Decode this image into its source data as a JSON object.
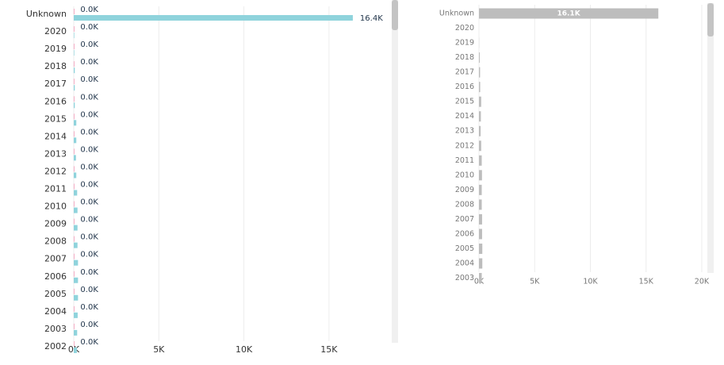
{
  "chart_data": [
    {
      "type": "bar",
      "orientation": "horizontal",
      "categories": [
        "Unknown",
        "2020",
        "2019",
        "2018",
        "2017",
        "2016",
        "2015",
        "2014",
        "2013",
        "2012",
        "2011",
        "2010",
        "2009",
        "2008",
        "2007",
        "2006",
        "2005",
        "2004",
        "2003",
        "2002"
      ],
      "series": [
        {
          "color": "#e8467c",
          "values": [
            20,
            20,
            20,
            20,
            20,
            20,
            20,
            20,
            20,
            20,
            20,
            20,
            20,
            20,
            20,
            20,
            20,
            20,
            20,
            20
          ],
          "value_labels": [
            "0.0K",
            "0.0K",
            "0.0K",
            "0.0K",
            "0.0K",
            "0.0K",
            "0.0K",
            "0.0K",
            "0.0K",
            "0.0K",
            "0.0K",
            "0.0K",
            "0.0K",
            "0.0K",
            "0.0K",
            "0.0K",
            "0.0K",
            "0.0K",
            "0.0K",
            "0.0K"
          ]
        },
        {
          "color": "#8fd3dc",
          "values": [
            16400,
            30,
            30,
            60,
            60,
            60,
            150,
            150,
            130,
            150,
            200,
            220,
            220,
            220,
            250,
            250,
            250,
            230,
            200,
            180
          ],
          "value_labels": [
            "16.4K",
            null,
            null,
            null,
            null,
            null,
            null,
            null,
            null,
            null,
            null,
            null,
            null,
            null,
            null,
            null,
            null,
            null,
            null,
            null
          ]
        }
      ],
      "xlim": [
        0,
        18500
      ],
      "xticks": [
        {
          "value": 0,
          "label": "0K"
        },
        {
          "value": 5000,
          "label": "5K"
        },
        {
          "value": 10000,
          "label": "10K"
        },
        {
          "value": 15000,
          "label": "15K"
        }
      ],
      "grid": true
    },
    {
      "type": "bar",
      "orientation": "horizontal",
      "categories": [
        "Unknown",
        "2020",
        "2019",
        "2018",
        "2017",
        "2016",
        "2015",
        "2014",
        "2013",
        "2012",
        "2011",
        "2010",
        "2009",
        "2008",
        "2007",
        "2006",
        "2005",
        "2004",
        "2003"
      ],
      "series": [
        {
          "color": "#bdbdbd",
          "values": [
            16100,
            0,
            10,
            70,
            100,
            110,
            200,
            170,
            150,
            200,
            250,
            270,
            250,
            250,
            280,
            280,
            300,
            300,
            250
          ],
          "value_labels": [
            "16.1K",
            null,
            null,
            null,
            null,
            null,
            null,
            null,
            null,
            null,
            null,
            null,
            null,
            null,
            null,
            null,
            null,
            null,
            null
          ]
        }
      ],
      "xlim": [
        0,
        20500
      ],
      "xticks": [
        {
          "value": 0,
          "label": "0K"
        },
        {
          "value": 5000,
          "label": "5K"
        },
        {
          "value": 10000,
          "label": "10K"
        },
        {
          "value": 15000,
          "label": "15K"
        },
        {
          "value": 20000,
          "label": "20K"
        }
      ],
      "grid": true
    }
  ]
}
